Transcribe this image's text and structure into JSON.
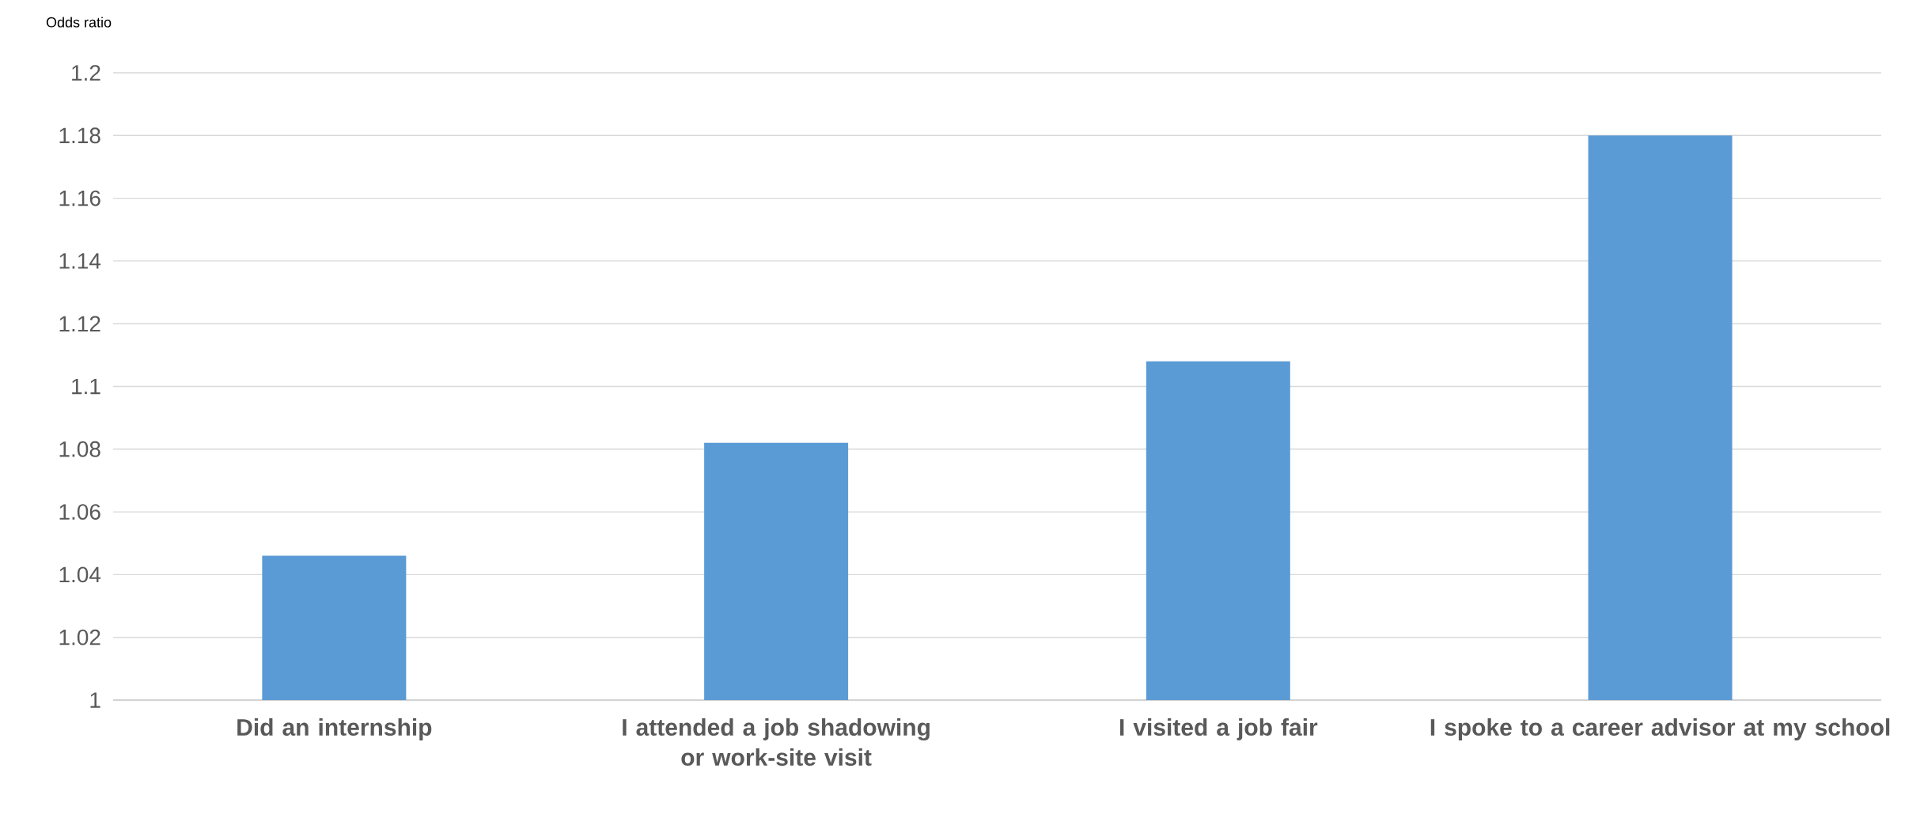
{
  "chart_data": {
    "type": "bar",
    "ylabel": "Odds ratio",
    "categories": [
      "Did an internship",
      "I attended a job shadowing or work-site visit",
      "I visited a job fair",
      "I spoke to a career advisor at my school"
    ],
    "values": [
      1.046,
      1.082,
      1.108,
      1.18
    ],
    "color": "#5b9bd5",
    "ylim": [
      1,
      1.2
    ],
    "yticks": [
      1,
      1.02,
      1.04,
      1.06,
      1.08,
      1.1,
      1.12,
      1.14,
      1.16,
      1.18,
      1.2
    ],
    "grid": "y"
  }
}
